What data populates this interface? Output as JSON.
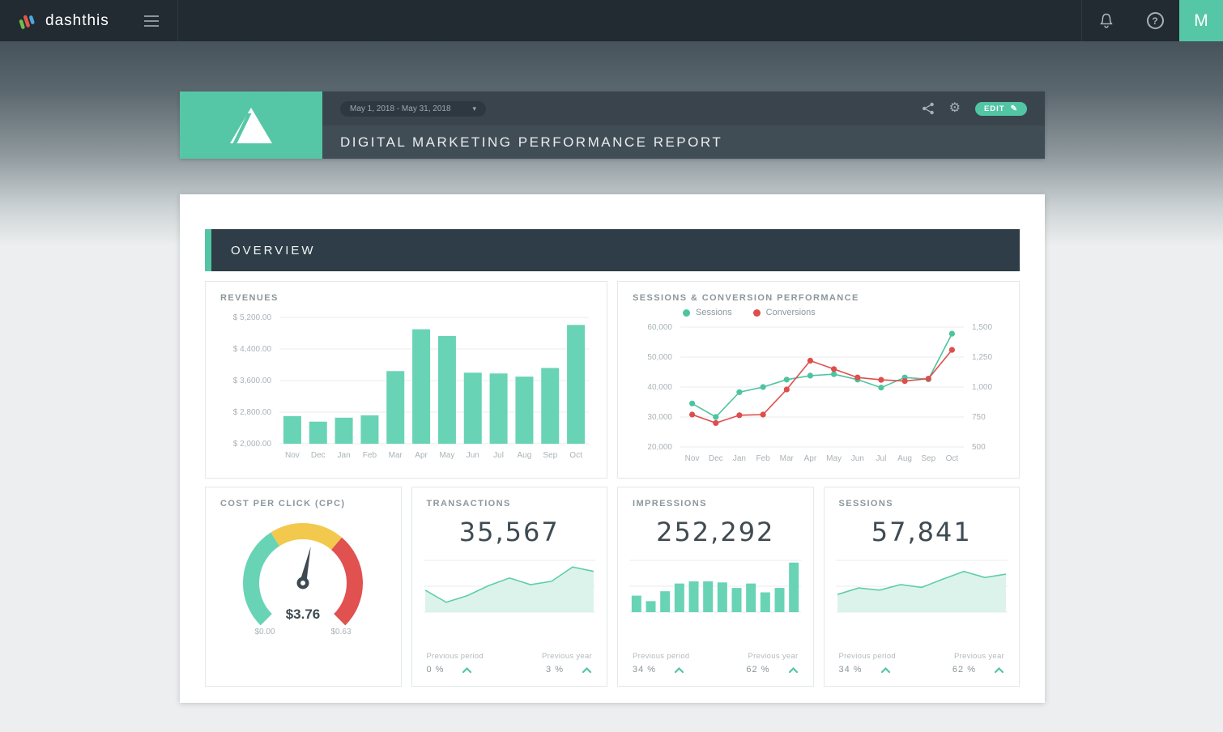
{
  "topbar": {
    "brand": "dashthis",
    "avatar_initial": "M"
  },
  "icons": {
    "chevron_down": "▾",
    "gear": "⚙",
    "pencil": "✎",
    "help": "?"
  },
  "report_header": {
    "date_range": "May 1, 2018 - May 31, 2018",
    "title": "DIGITAL MARKETING PERFORMANCE REPORT",
    "edit_label": "EDIT"
  },
  "section_title": "OVERVIEW",
  "colors": {
    "teal": "#53C5A5",
    "teal_bar": "#69D3B6",
    "teal_fill": "#DCF3EB",
    "red": "#DD4E4C",
    "yellow": "#F2C94C",
    "text_dark": "#3F4B52",
    "text_muted": "#8C979C"
  },
  "widgets": {
    "revenues": {
      "title": "REVENUES"
    },
    "sessions_conversions": {
      "title": "SESSIONS & CONVERSION PERFORMANCE",
      "legend": [
        {
          "label": "Sessions",
          "color": "#4EC3A0"
        },
        {
          "label": "Conversions",
          "color": "#DD4E4C"
        }
      ]
    },
    "cpc": {
      "title": "COST PER CLICK (CPC)"
    },
    "transactions": {
      "title": "TRANSACTIONS",
      "value": "35,567",
      "previous_period_label": "Previous period",
      "previous_period_value": "0 %",
      "previous_year_label": "Previous year",
      "previous_year_value": "3 %"
    },
    "impressions": {
      "title": "IMPRESSIONS",
      "value": "252,292",
      "previous_period_label": "Previous period",
      "previous_period_value": "34 %",
      "previous_year_label": "Previous year",
      "previous_year_value": "62 %"
    },
    "sessions": {
      "title": "SESSIONS",
      "value": "57,841",
      "previous_period_label": "Previous period",
      "previous_period_value": "34 %",
      "previous_year_label": "Previous year",
      "previous_year_value": "62 %"
    }
  },
  "chart_data": [
    {
      "id": "revenues",
      "type": "bar",
      "title": "REVENUES",
      "categories": [
        "Nov",
        "Dec",
        "Jan",
        "Feb",
        "Mar",
        "Apr",
        "May",
        "Jun",
        "Jul",
        "Aug",
        "Sep",
        "Oct"
      ],
      "values": [
        2700,
        2560,
        2660,
        2720,
        3840,
        4900,
        4730,
        3800,
        3780,
        3700,
        3920,
        5010
      ],
      "y_ticks": [
        "$ 5,200.00",
        "$ 4,400.00",
        "$ 3,600.00",
        "$ 2,800.00",
        "$ 2,000.00"
      ],
      "ylim": [
        2000,
        5200
      ],
      "xlabel": "",
      "ylabel": "",
      "grid": true,
      "bar_color": "#69D3B6"
    },
    {
      "id": "sessions_conversions",
      "type": "line",
      "title": "SESSIONS & CONVERSION PERFORMANCE",
      "categories": [
        "Nov",
        "Dec",
        "Jan",
        "Feb",
        "Mar",
        "Apr",
        "May",
        "Jun",
        "Jul",
        "Aug",
        "Sep",
        "Oct"
      ],
      "series": [
        {
          "name": "Sessions",
          "axis": "left",
          "color": "#4EC3A0",
          "values": [
            34500,
            30000,
            38300,
            40000,
            42500,
            43800,
            44300,
            42500,
            39800,
            43200,
            42600,
            57800
          ]
        },
        {
          "name": "Conversions",
          "axis": "right",
          "color": "#DD4E4C",
          "values": [
            770,
            700,
            765,
            770,
            980,
            1220,
            1150,
            1080,
            1060,
            1050,
            1070,
            1310
          ]
        }
      ],
      "left_ticks": [
        "60,000",
        "50,000",
        "40,000",
        "30,000",
        "20,000"
      ],
      "right_ticks": [
        "1,500",
        "1,250",
        "1,000",
        "750",
        "500"
      ],
      "left_lim": [
        20000,
        60000
      ],
      "right_lim": [
        500,
        1500
      ],
      "legend_position": "top-left",
      "grid": true
    },
    {
      "id": "cpc",
      "type": "gauge",
      "title": "COST PER CLICK (CPC)",
      "value_label": "$3.76",
      "min_label": "$0.00",
      "max_label": "$0.63",
      "needle_fraction": 0.545,
      "segments": [
        {
          "color": "#69D3B6",
          "from": 0,
          "to": 0.38
        },
        {
          "color": "#F2C94C",
          "from": 0.38,
          "to": 0.65
        },
        {
          "color": "#E0514F",
          "from": 0.65,
          "to": 1
        }
      ]
    },
    {
      "id": "transactions_spark",
      "type": "area",
      "spark": true,
      "values_relative": [
        40,
        18,
        30,
        48,
        62,
        50,
        56,
        82,
        74
      ],
      "line_color": "#5ECDAD",
      "fill_color": "#DCF3EB"
    },
    {
      "id": "impressions_spark",
      "type": "bar",
      "spark": true,
      "values_relative": [
        30,
        20,
        38,
        52,
        56,
        56,
        54,
        44,
        52,
        36,
        44,
        90
      ],
      "bar_color": "#69D3B6"
    },
    {
      "id": "sessions_spark",
      "type": "area",
      "spark": true,
      "values_relative": [
        32,
        44,
        40,
        50,
        45,
        60,
        74,
        63,
        69
      ],
      "line_color": "#5ECDAD",
      "fill_color": "#DCF3EB"
    }
  ]
}
